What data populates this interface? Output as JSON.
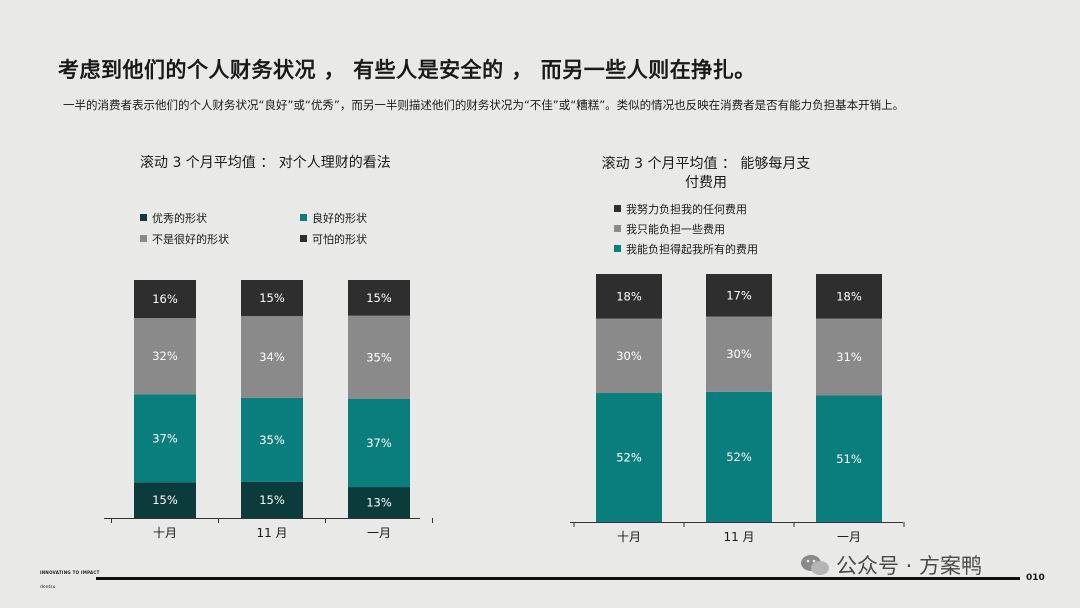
{
  "header": {
    "title": "考虑到他们的个人财务状况 ， 有些人是安全的 ， 而另一些人则在挣扎。",
    "subtitle": "一半的消费者表示他们的个人财务状况“良好”或“优秀”，而另一半则描述他们的财务状况为“不佳”或“糟糕”。类似的情况也反映在消费者是否有能力负担基本开销上。"
  },
  "colors": {
    "dark": "#2e2e2e",
    "gray": "#8a8a8a",
    "teal": "#0a7d7d",
    "darkteal": "#0b3b3b"
  },
  "charts": [
    {
      "title": "滚动 3 个月平均值 ： 对个人理财的看法"
    },
    {
      "title": "滚动 3 个月平均值 ： 能够每月支付费用"
    }
  ],
  "chart_data": [
    {
      "type": "bar",
      "stacked": true,
      "title": "滚动 3 个月平均值 ： 对个人理财的看法",
      "categories": [
        "十月",
        "11 月",
        "一月"
      ],
      "series": [
        {
          "name": "优秀的形状",
          "color": "#0b3b3b",
          "values": [
            15,
            15,
            13
          ]
        },
        {
          "name": "良好的形状",
          "color": "#0a7d7d",
          "values": [
            37,
            35,
            37
          ]
        },
        {
          "name": "不是很好的形状",
          "color": "#8a8a8a",
          "values": [
            32,
            34,
            35
          ]
        },
        {
          "name": "可怕的形状",
          "color": "#2e2e2e",
          "values": [
            16,
            15,
            15
          ]
        }
      ],
      "labels": [
        [
          "15%",
          "15%",
          "13%"
        ],
        [
          "37%",
          "35%",
          "37%"
        ],
        [
          "32%",
          "34%",
          "35%"
        ],
        [
          "16%",
          "15%",
          "15%"
        ]
      ],
      "legend_order": [
        0,
        1,
        2,
        3
      ]
    },
    {
      "type": "bar",
      "stacked": true,
      "title": "滚动 3 个月平均值 ： 能够每月支付费用",
      "categories": [
        "十月",
        "11 月",
        "一月"
      ],
      "series": [
        {
          "name": "我能负担得起我所有的费用",
          "color": "#0a7d7d",
          "values": [
            52,
            52,
            51
          ]
        },
        {
          "name": "我只能负担一些费用",
          "color": "#8a8a8a",
          "values": [
            30,
            30,
            31
          ]
        },
        {
          "name": "我努力负担我的任何费用",
          "color": "#2e2e2e",
          "values": [
            18,
            17,
            18
          ]
        }
      ],
      "labels": [
        [
          "52%",
          "52%",
          "51%"
        ],
        [
          "30%",
          "30%",
          "31%"
        ],
        [
          "18%",
          "17%",
          "18%"
        ]
      ],
      "legend_order": [
        2,
        1,
        0
      ]
    }
  ],
  "footer": {
    "brand_line1": "INNOVATING TO IMPACT",
    "brand_line2": "dentsu",
    "page": "010",
    "watermark": "公众号 · 方案鸭"
  }
}
